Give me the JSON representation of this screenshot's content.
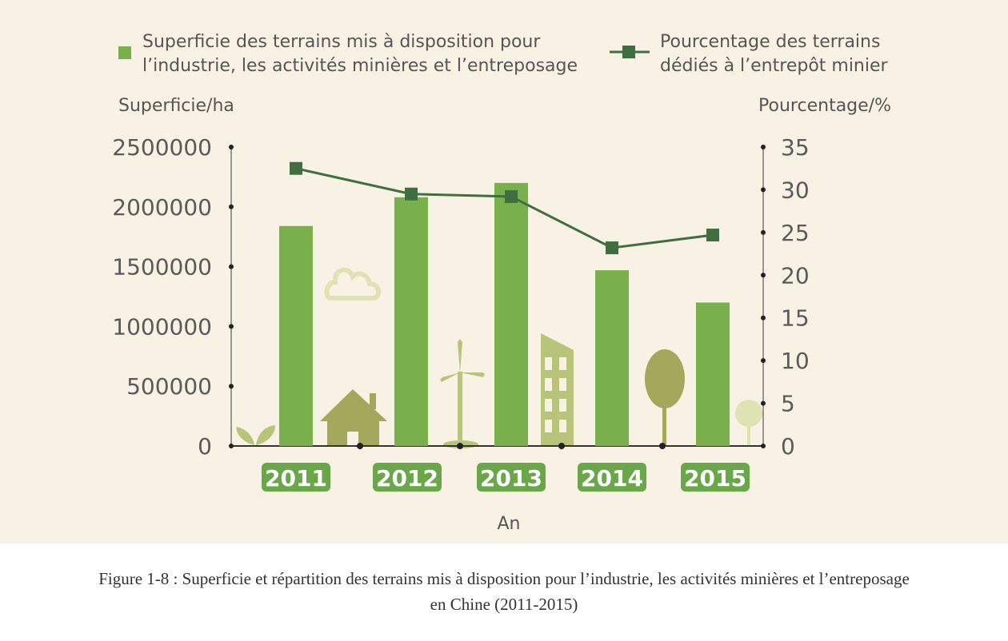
{
  "chart_data": {
    "type": "bar+line",
    "categories": [
      "2011",
      "2012",
      "2013",
      "2014",
      "2015"
    ],
    "xlabel": "An",
    "series": [
      {
        "name": "Superficie des terrains mis à disposition pour l’industrie, les activités minières et l’entreposage",
        "name_lines": [
          "Superficie des terrains mis à disposition pour",
          "l’industrie, les activités minières et l’entreposage"
        ],
        "type": "bar",
        "axis": "left",
        "values": [
          1840000,
          2080000,
          2200000,
          1470000,
          1200000
        ],
        "color": "#7ab04c"
      },
      {
        "name": "Pourcentage des terrains dédiés à l’entrepôt minier",
        "name_lines": [
          "Pourcentage des terrains",
          "dédiés à l’entrepôt minier"
        ],
        "type": "line",
        "axis": "right",
        "values": [
          32.5,
          29.5,
          29.2,
          23.2,
          24.7
        ],
        "color": "#3f6f3f"
      }
    ],
    "y_left": {
      "label": "Superficie/ha",
      "range": [
        0,
        2500000
      ],
      "ticks": [
        "0",
        "500000",
        "1000000",
        "1500000",
        "2000000",
        "2500000"
      ]
    },
    "y_right": {
      "label": "Pourcentage/%",
      "range": [
        0,
        35
      ],
      "ticks": [
        "0",
        "5",
        "10",
        "15",
        "20",
        "25",
        "30",
        "35"
      ]
    },
    "legend_position": "top",
    "grid": false
  },
  "caption": {
    "line1": "Figure 1-8 : Superficie et répartition des terrains mis à disposition pour l’industrie, les activités minières et l’entreposage",
    "line2": "en Chine (2011-2015)"
  },
  "colors": {
    "background": "#f8f2e4",
    "bar": "#7ab04c",
    "line": "#3f6f3f",
    "year_badge": "#6aa64a",
    "decoration": "#b8c47a"
  }
}
